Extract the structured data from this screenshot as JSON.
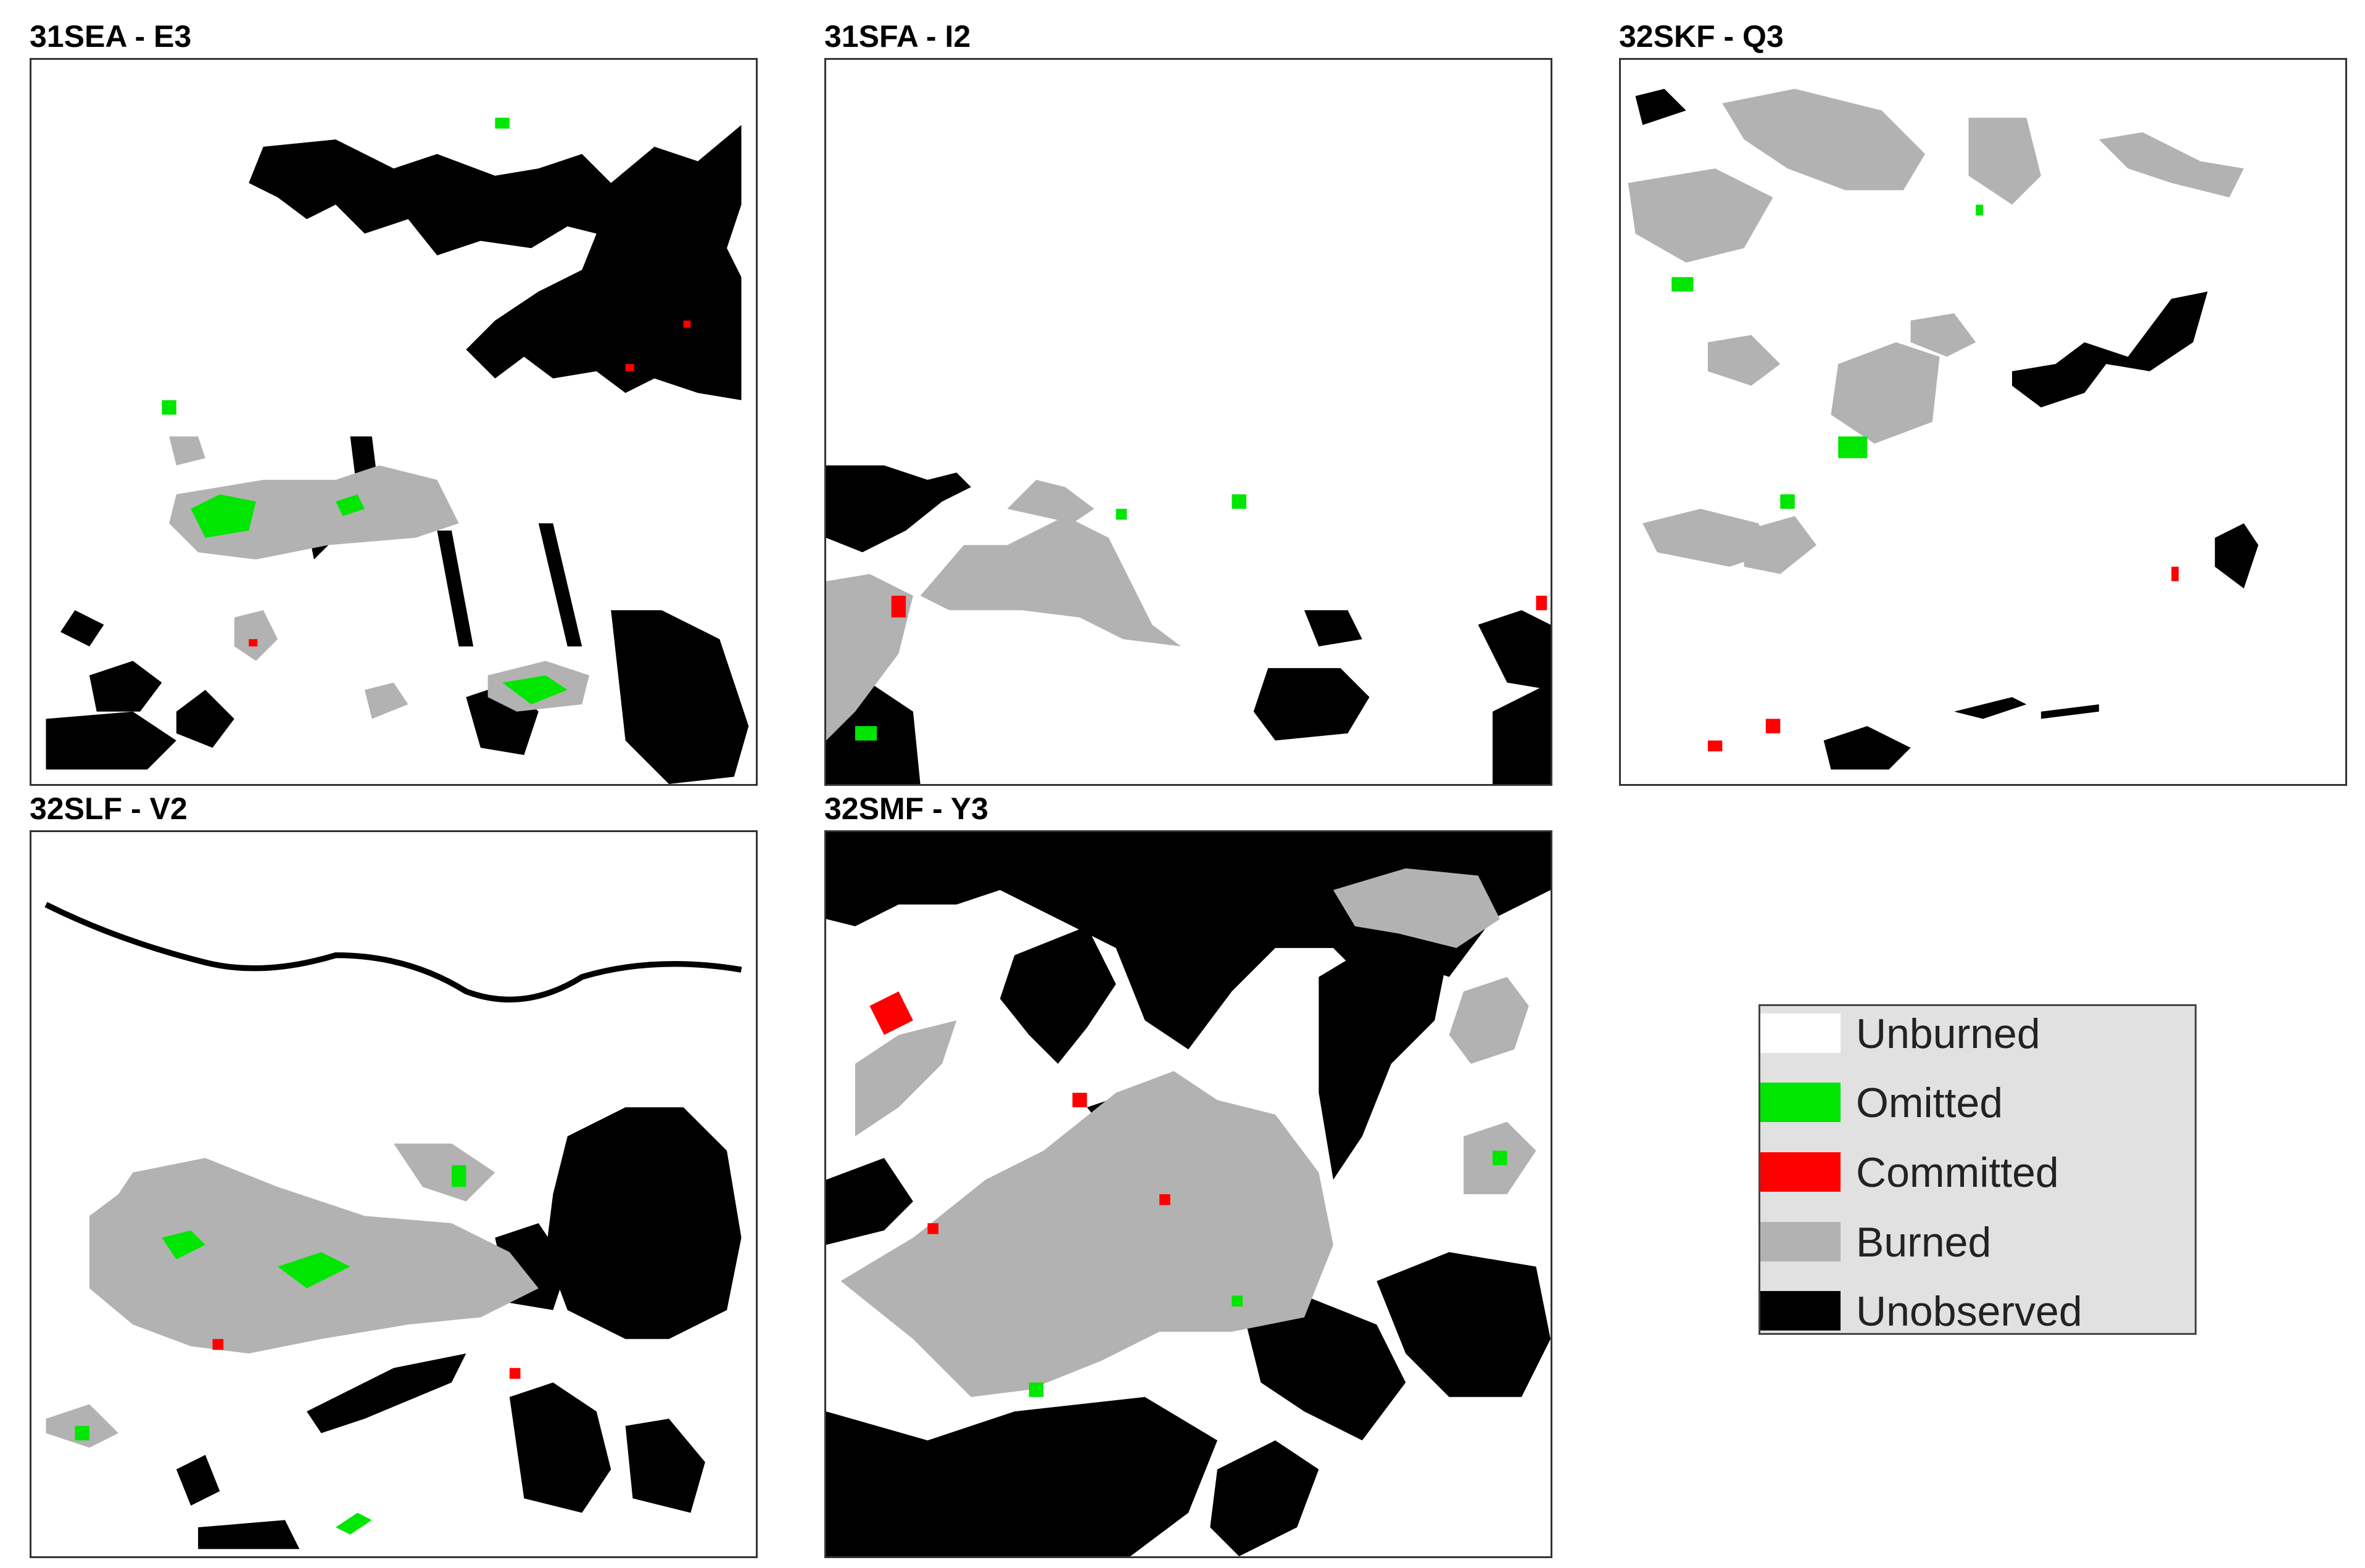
{
  "panels": [
    {
      "title": "31SEA - E3"
    },
    {
      "title": "31SFA - I2"
    },
    {
      "title": "32SKF - Q3"
    },
    {
      "title": "32SLF - V2"
    },
    {
      "title": "32SMF - Y3"
    }
  ],
  "legend": {
    "items": [
      {
        "label": "Unburned",
        "color": "#ffffff"
      },
      {
        "label": "Omitted",
        "color": "#00e600"
      },
      {
        "label": "Committed",
        "color": "#ff0000"
      },
      {
        "label": "Burned",
        "color": "#b2b2b2"
      },
      {
        "label": "Unobserved",
        "color": "#000000"
      }
    ]
  }
}
